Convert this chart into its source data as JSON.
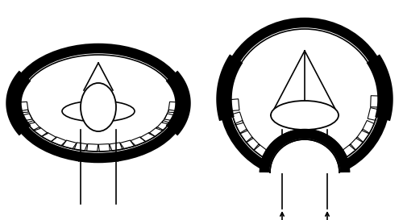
{
  "background_color": "#ffffff",
  "line_color": "#000000",
  "fig_width": 5.0,
  "fig_height": 2.73,
  "dpi": 100
}
